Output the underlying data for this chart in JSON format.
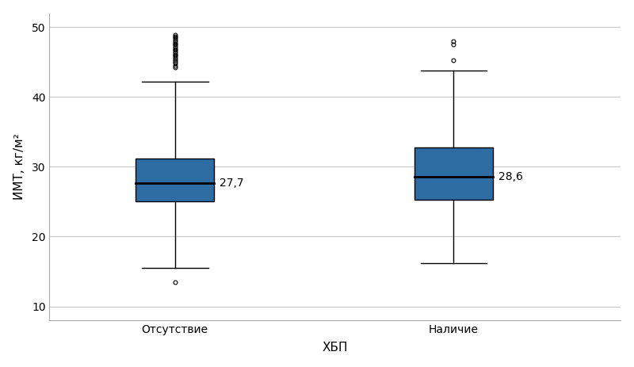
{
  "categories": [
    "Отсутствие",
    "Наличие"
  ],
  "box1": {
    "median": 27.7,
    "q1": 25.1,
    "q3": 31.2,
    "whisker_low": 15.5,
    "whisker_high": 42.2,
    "outliers_low": [
      13.5
    ],
    "outliers_high": [
      44.2,
      44.5,
      44.8,
      45.0,
      45.3,
      45.5,
      45.7,
      45.9,
      46.1,
      46.3,
      46.5,
      46.7,
      46.9,
      47.1,
      47.3,
      47.5,
      47.7,
      47.9,
      48.1,
      48.3,
      48.5,
      48.7,
      48.9
    ]
  },
  "box2": {
    "median": 28.6,
    "q1": 25.3,
    "q3": 32.8,
    "whisker_low": 16.2,
    "whisker_high": 43.8,
    "outliers_low": [],
    "outliers_high": [
      45.3,
      47.5,
      48.0
    ]
  },
  "ylabel": "ИМТ, кг/м²",
  "xlabel": "ХБП",
  "ylim": [
    8,
    52
  ],
  "yticks": [
    10,
    20,
    30,
    40,
    50
  ],
  "box_color": "#2E6DA4",
  "median_color": "#000000",
  "whisker_color": "#000000",
  "outlier_color": "#000000",
  "background_color": "#ffffff",
  "grid_color": "#c8c8c8",
  "box_width": 0.28,
  "label_fontsize": 11,
  "tick_fontsize": 10,
  "median_label_fontsize": 10
}
